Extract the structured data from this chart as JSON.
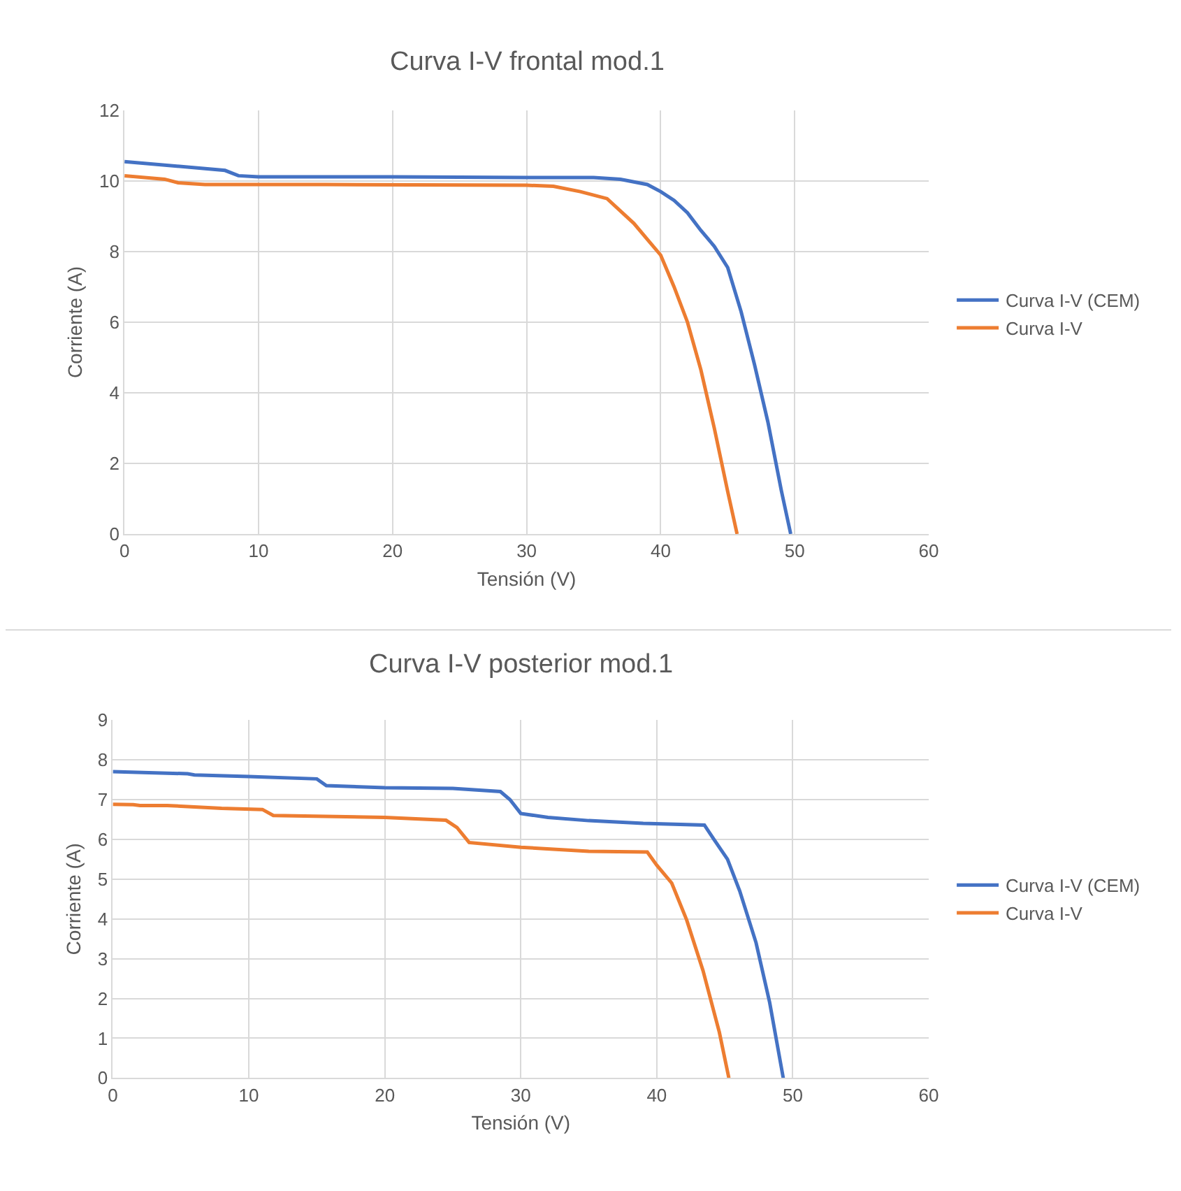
{
  "chart_data": [
    {
      "type": "line",
      "title": "Curva I-V frontal mod.1",
      "xlabel": "Tensión (V)",
      "ylabel": "Corriente (A)",
      "xlim": [
        0,
        60
      ],
      "xticks": [
        0,
        10,
        20,
        30,
        40,
        50,
        60
      ],
      "ylim": [
        0,
        12
      ],
      "yticks": [
        0,
        2,
        4,
        6,
        8,
        10,
        12
      ],
      "grid": true,
      "legend": "right",
      "marker": "none",
      "series": [
        {
          "name": "Curva I-V (CEM)",
          "color": "#4472c4",
          "x": [
            0,
            7.5,
            8.5,
            10,
            20,
            30,
            35,
            37,
            39,
            40,
            41,
            42,
            43,
            44,
            45,
            46,
            47,
            48,
            49,
            49.7
          ],
          "values": [
            10.55,
            10.3,
            10.15,
            10.12,
            10.12,
            10.1,
            10.1,
            10.05,
            9.9,
            9.7,
            9.45,
            9.1,
            8.6,
            8.15,
            7.55,
            6.3,
            4.8,
            3.17,
            1.23,
            0
          ]
        },
        {
          "name": "Curva I-V",
          "color": "#ed7d31",
          "x": [
            0,
            3,
            4,
            6,
            15,
            30,
            32,
            34,
            36,
            38,
            39,
            40,
            41,
            42,
            43,
            44,
            45,
            45.7
          ],
          "values": [
            10.15,
            10.05,
            9.95,
            9.9,
            9.9,
            9.88,
            9.85,
            9.7,
            9.5,
            8.8,
            8.35,
            7.9,
            7.0,
            6.0,
            4.65,
            3.0,
            1.2,
            0
          ]
        }
      ]
    },
    {
      "type": "line",
      "title": "Curva I-V posterior mod.1",
      "xlabel": "Tensión (V)",
      "ylabel": "Corriente (A)",
      "xlim": [
        0,
        60
      ],
      "xticks": [
        0,
        10,
        20,
        30,
        40,
        50,
        60
      ],
      "ylim": [
        0,
        9
      ],
      "yticks": [
        0,
        1,
        2,
        3,
        4,
        5,
        6,
        7,
        8,
        9
      ],
      "grid": true,
      "legend": "right",
      "marker": "none",
      "series": [
        {
          "name": "Curva I-V (CEM)",
          "color": "#4472c4",
          "x": [
            0,
            5.5,
            6,
            10,
            15,
            15.7,
            20,
            25,
            28.5,
            29.2,
            30,
            32,
            35,
            39,
            43.5,
            44.2,
            45.2,
            46.1,
            47.3,
            48.3,
            49.3
          ],
          "values": [
            7.7,
            7.65,
            7.62,
            7.58,
            7.52,
            7.35,
            7.3,
            7.28,
            7.2,
            7.0,
            6.65,
            6.55,
            6.47,
            6.4,
            6.36,
            6.0,
            5.5,
            4.7,
            3.4,
            1.9,
            0
          ]
        },
        {
          "name": "Curva I-V",
          "color": "#ed7d31",
          "x": [
            0,
            1.5,
            2,
            4,
            8,
            11,
            11.8,
            20,
            24.5,
            25.3,
            26.2,
            30,
            35,
            39.3,
            40,
            41.1,
            42.2,
            43.4,
            44.6,
            45.3
          ],
          "values": [
            6.88,
            6.87,
            6.85,
            6.85,
            6.78,
            6.75,
            6.6,
            6.55,
            6.48,
            6.3,
            5.92,
            5.8,
            5.7,
            5.68,
            5.35,
            4.9,
            3.97,
            2.7,
            1.15,
            0
          ]
        }
      ]
    }
  ]
}
